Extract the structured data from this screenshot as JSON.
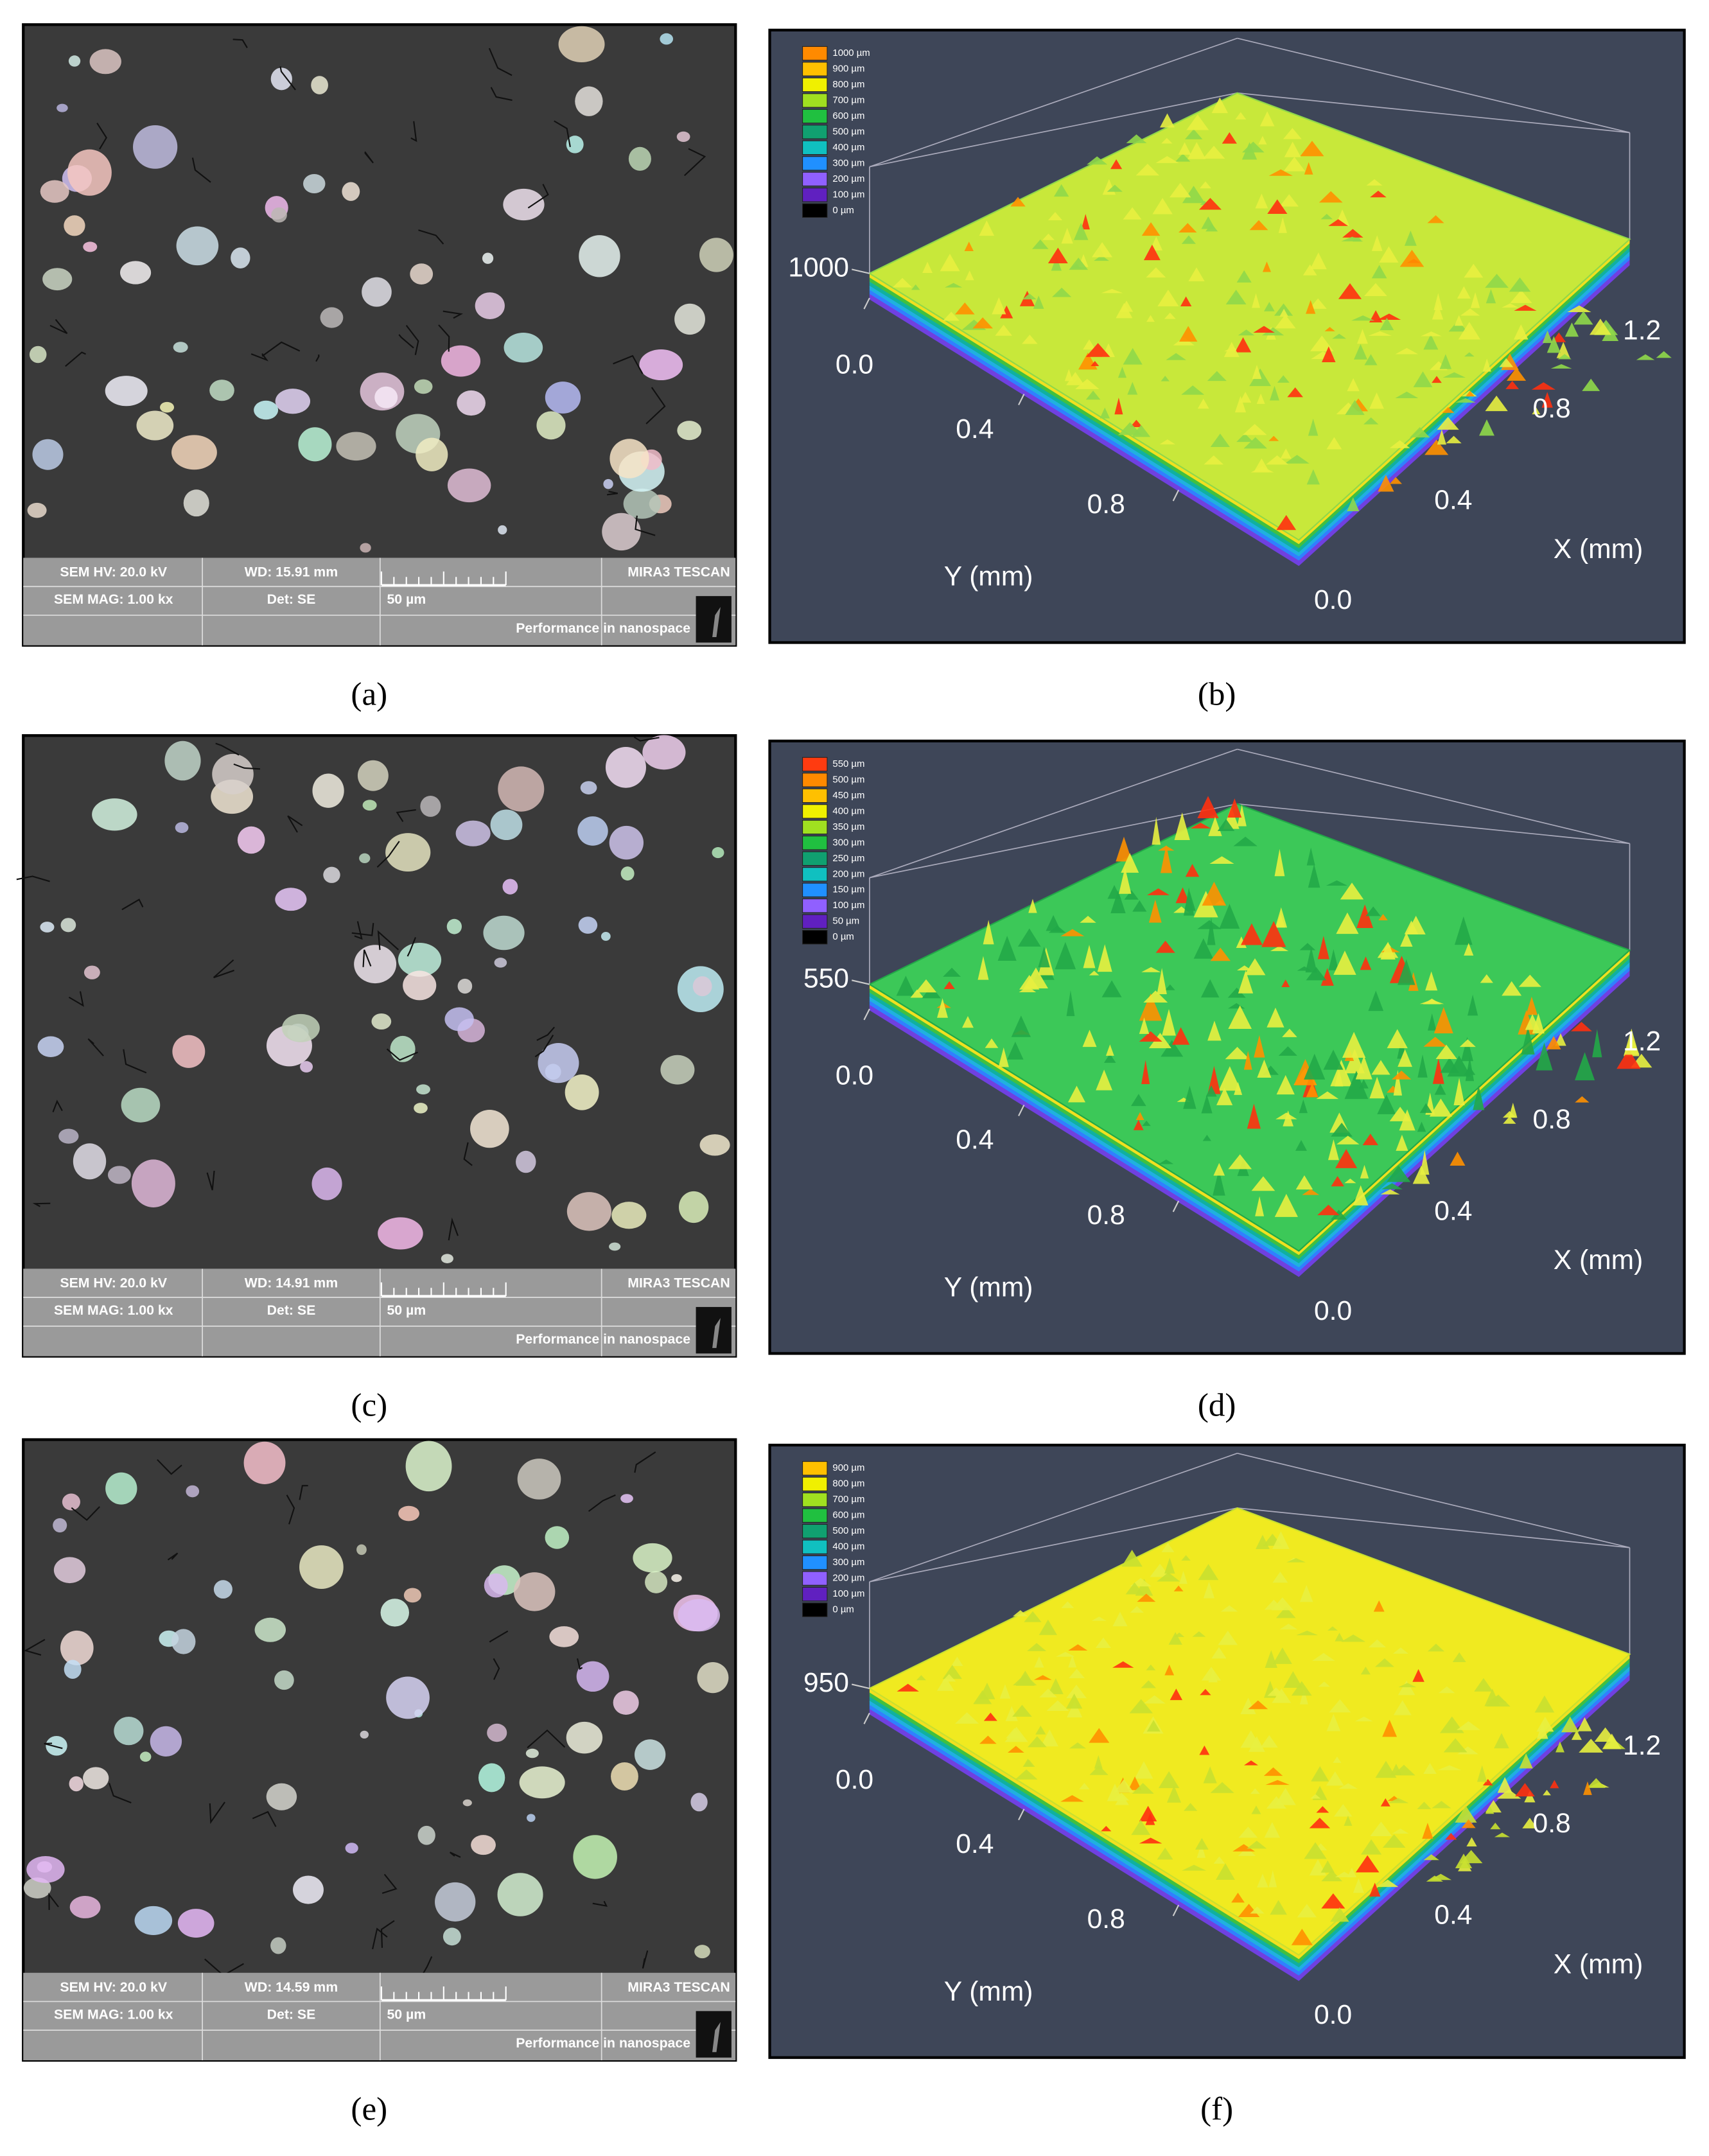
{
  "panels": [
    {
      "kind": "sem",
      "caption": "(a)",
      "info": {
        "hv": "SEM HV: 20.0 kV",
        "wd": "WD: 15.91 mm",
        "brand": "MIRA3 TESCAN",
        "mag": "SEM MAG: 1.00 kx",
        "det": "Det: SE",
        "scale": "50 µm",
        "slogan": "Performance in nanospace"
      }
    },
    {
      "kind": "profile",
      "caption": "(b)",
      "legend": [
        "1000 µm",
        "900 µm",
        "800 µm",
        "700 µm",
        "600 µm",
        "500 µm",
        "400 µm",
        "300 µm",
        "200 µm",
        "100 µm",
        "0 µm"
      ],
      "zlabel": "1000",
      "yticks": [
        "0.0",
        "0.4",
        "0.8"
      ],
      "ylabel": "Y (mm)",
      "xticks": [
        "0.0",
        "0.4",
        "0.8",
        "1.2"
      ],
      "xlabel": "X (mm)"
    },
    {
      "kind": "sem",
      "caption": "(c)",
      "info": {
        "hv": "SEM HV: 20.0 kV",
        "wd": "WD: 14.91 mm",
        "brand": "MIRA3 TESCAN",
        "mag": "SEM MAG: 1.00 kx",
        "det": "Det: SE",
        "scale": "50 µm",
        "slogan": "Performance in nanospace"
      }
    },
    {
      "kind": "profile",
      "caption": "(d)",
      "legend": [
        "550 µm",
        "500 µm",
        "450 µm",
        "400 µm",
        "350 µm",
        "300 µm",
        "250 µm",
        "200 µm",
        "150 µm",
        "100 µm",
        "50 µm",
        "0 µm"
      ],
      "zlabel": "550",
      "yticks": [
        "0.0",
        "0.4",
        "0.8"
      ],
      "ylabel": "Y (mm)",
      "xticks": [
        "0.0",
        "0.4",
        "0.8",
        "1.2"
      ],
      "xlabel": "X (mm)"
    },
    {
      "kind": "sem",
      "caption": "(e)",
      "info": {
        "hv": "SEM HV: 20.0 kV",
        "wd": "WD: 14.59 mm",
        "brand": "MIRA3 TESCAN",
        "mag": "SEM MAG: 1.00 kx",
        "det": "Det: SE",
        "scale": "50 µm",
        "slogan": "Performance in nanospace"
      }
    },
    {
      "kind": "profile",
      "caption": "(f)",
      "legend": [
        "900 µm",
        "800 µm",
        "700 µm",
        "600 µm",
        "500 µm",
        "400 µm",
        "300 µm",
        "200 µm",
        "100 µm",
        "0 µm"
      ],
      "zlabel": "950",
      "yticks": [
        "0.0",
        "0.4",
        "0.8"
      ],
      "ylabel": "Y (mm)",
      "xticks": [
        "0.0",
        "0.4",
        "0.8",
        "1.2"
      ],
      "xlabel": "X (mm)"
    }
  ]
}
